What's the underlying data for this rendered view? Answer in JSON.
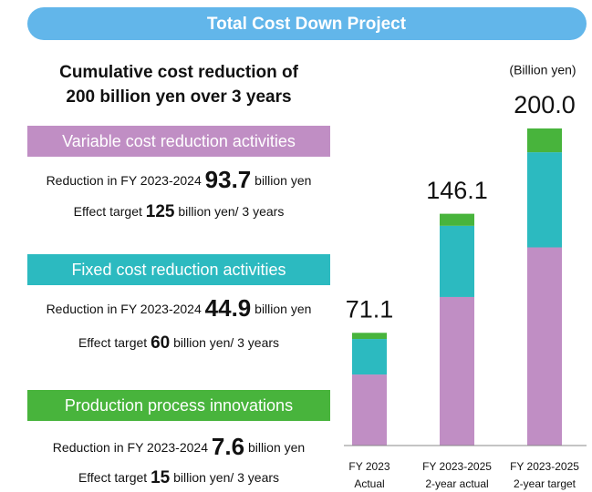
{
  "header": {
    "title": "Total Cost Down Project"
  },
  "headline": [
    "Cumulative cost reduction of",
    "200 billion yen over 3 years"
  ],
  "sections": [
    {
      "title": "Variable cost reduction activities",
      "color": "#c08ec4",
      "reduction": {
        "prefix": "Reduction in FY 2023-2024",
        "value": 93.7,
        "suffix": "billion yen"
      },
      "target": {
        "prefix": "Effect target",
        "value": 125,
        "suffix": "billion yen/ 3 years"
      }
    },
    {
      "title": "Fixed cost reduction activities",
      "color": "#2cbac0",
      "reduction": {
        "prefix": "Reduction in FY 2023-2024",
        "value": 44.9,
        "suffix": "billion yen"
      },
      "target": {
        "prefix": "Effect target",
        "value": 60,
        "suffix": "billion yen/ 3 years"
      }
    },
    {
      "title": "Production process innovations",
      "color": "#48b43c",
      "reduction": {
        "prefix": "Reduction in FY 2023-2024",
        "value": 7.6,
        "suffix": "billion yen"
      },
      "target": {
        "prefix": "Effect target",
        "value": 15,
        "suffix": "billion yen/ 3 years"
      }
    }
  ],
  "chart_data": {
    "type": "stacked_bar",
    "unit_label": "(Billion yen)",
    "categories": [
      [
        "FY 2023",
        "Actual"
      ],
      [
        "FY 2023-2025",
        "2-year actual"
      ],
      [
        "FY 2023-2025",
        "2-year target"
      ]
    ],
    "series": [
      {
        "color": "#c08ec4",
        "values": [
          44.8,
          93.7,
          125
        ]
      },
      {
        "color": "#2cbac0",
        "values": [
          22.4,
          44.9,
          60
        ]
      },
      {
        "color": "#48b43c",
        "values": [
          3.9,
          7.6,
          15
        ]
      }
    ],
    "totals": {
      "values": [
        71.1,
        146.1,
        200
      ],
      "value_labels": [
        "71.1",
        "146.1",
        "200.0"
      ]
    },
    "ylim": [
      0,
      200
    ]
  }
}
